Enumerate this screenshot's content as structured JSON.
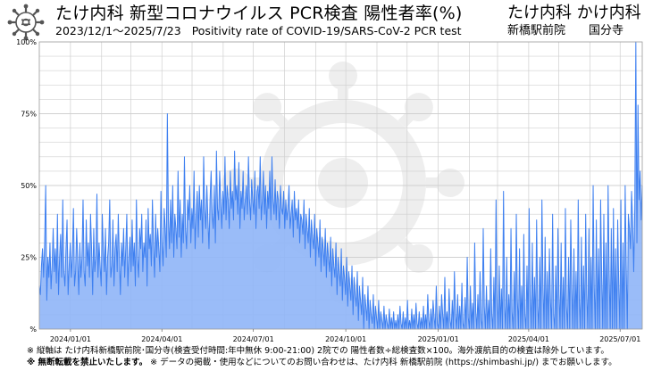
{
  "header": {
    "title": "たけ内科 新型コロナウイルス PCR検査 陽性者率(%)",
    "date_range": "2023/12/1～2025/7/23",
    "subtitle_en": "Positivity rate of COVID-19/SARS-CoV-2 PCR test",
    "clinic_brand": "たけ内科 かけ内科",
    "clinic_branch_1": "新橋駅前院",
    "clinic_branch_2": "国分寺"
  },
  "notes": {
    "line1": "※ 縦軸は たけ内科新橋駅前院･国分寺(検査受付時間:年中無休 9:00-21:00) 2院での 陽性者数÷総検査数×100。海外渡航目的の検査は除外しています。",
    "line2_bold": "※ 無断転載を禁止いたします。",
    "line2_rest": " ※ データの掲載・使用などについてのお問い合わせは、たけ内科 新橋駅前院 (https://shimbashi.jp/) までお願いします。"
  },
  "colors": {
    "line": "#3d7ff0",
    "fill": "#8fb5f7",
    "grid": "#d0d0d0",
    "watermark": "#eeeeee"
  },
  "chart_data": {
    "type": "area",
    "x_start": "2023-12-01",
    "x_end": "2025-07-23",
    "ylim": [
      0,
      100
    ],
    "y_ticks": [
      0,
      25,
      50,
      75,
      100
    ],
    "y_tick_labels": [
      "%",
      "25%",
      "50%",
      "75%",
      "100%"
    ],
    "x_ticks": [
      "2024-01-01",
      "2024-04-01",
      "2024-07-01",
      "2024-10-01",
      "2025-01-01",
      "2025-04-01",
      "2025-07-01"
    ],
    "x_tick_labels": [
      "2024/01/01",
      "2024/04/01",
      "2024/07/01",
      "2024/10/01",
      "2025/01/01",
      "2025/04/01",
      "2025/07/01"
    ],
    "grid": true,
    "series": [
      {
        "values": [
          15,
          12,
          22,
          28,
          18,
          30,
          50,
          10,
          25,
          18,
          30,
          14,
          22,
          35,
          20,
          28,
          16,
          40,
          12,
          25,
          33,
          18,
          45,
          20,
          15,
          28,
          38,
          12,
          22,
          30,
          18,
          26,
          42,
          15,
          20,
          35,
          25,
          12,
          30,
          18,
          25,
          45,
          20,
          15,
          38,
          22,
          30,
          18,
          40,
          28,
          12,
          35,
          20,
          25,
          47,
          18,
          30,
          22,
          15,
          40,
          28,
          20,
          35,
          12,
          25,
          30,
          45,
          18,
          22,
          38,
          15,
          28,
          33,
          20,
          40,
          25,
          12,
          30,
          22,
          35,
          18,
          28,
          40,
          15,
          25,
          32,
          20,
          38,
          22,
          30,
          15,
          45,
          25,
          18,
          35,
          28,
          40,
          20,
          30,
          25,
          38,
          15,
          42,
          28,
          33,
          22,
          45,
          30,
          18,
          40,
          25,
          35,
          28,
          20,
          48,
          30,
          22,
          42,
          35,
          25,
          75,
          38,
          28,
          45,
          30,
          50,
          25,
          40,
          35,
          28,
          55,
          32,
          45,
          25,
          40,
          30,
          60,
          35,
          28,
          45,
          38,
          50,
          30,
          42,
          35,
          55,
          28,
          40,
          48,
          32,
          50,
          38,
          45,
          30,
          60,
          42,
          35,
          50,
          38,
          28,
          45,
          55,
          40,
          35,
          50,
          30,
          62,
          42,
          38,
          55,
          45,
          35,
          48,
          40,
          60,
          38,
          50,
          45,
          35,
          55,
          42,
          48,
          38,
          62,
          45,
          50,
          40,
          58,
          35,
          48,
          42,
          55,
          38,
          45,
          50,
          40,
          60,
          45,
          38,
          52,
          45,
          40,
          55,
          35,
          48,
          50,
          42,
          60,
          38,
          45,
          55,
          40,
          50,
          35,
          48,
          42,
          55,
          38,
          60,
          45,
          40,
          52,
          38,
          48,
          45,
          35,
          50,
          42,
          40,
          48,
          35,
          45,
          38,
          42,
          50,
          35,
          40,
          45,
          32,
          48,
          38,
          42,
          35,
          45,
          30,
          40,
          38,
          33,
          45,
          28,
          40,
          35,
          30,
          42,
          25,
          38,
          32,
          28,
          40,
          22,
          35,
          30,
          25,
          38,
          20,
          32,
          28,
          22,
          35,
          18,
          30,
          25,
          20,
          32,
          15,
          28,
          22,
          18,
          30,
          12,
          25,
          20,
          15,
          28,
          10,
          22,
          18,
          12,
          25,
          8,
          20,
          15,
          10,
          22,
          5,
          18,
          12,
          8,
          20,
          3,
          15,
          10,
          5,
          18,
          0,
          12,
          8,
          3,
          15,
          0,
          10,
          5,
          2,
          12,
          0,
          8,
          4,
          0,
          10,
          0,
          6,
          3,
          0,
          8,
          0,
          5,
          2,
          0,
          7,
          0,
          4,
          0,
          6,
          0,
          3,
          0,
          5,
          0,
          8,
          2,
          0,
          6,
          0,
          4,
          0,
          10,
          0,
          3,
          0,
          7,
          0,
          5,
          0,
          9,
          2,
          0,
          6,
          0,
          4,
          0,
          8,
          0,
          5,
          0,
          12,
          3,
          0,
          7,
          0,
          10,
          4,
          0,
          15,
          2,
          0,
          8,
          0,
          12,
          5,
          0,
          18,
          0,
          6,
          0,
          14,
          3,
          0,
          10,
          0,
          20,
          5,
          0,
          12,
          0,
          8,
          0,
          16,
          2,
          0,
          11,
          0,
          25,
          4,
          0,
          15,
          0,
          9,
          0,
          30,
          6,
          0,
          12,
          0,
          20,
          3,
          0,
          35,
          8,
          0,
          15,
          0,
          10,
          0,
          28,
          5,
          0,
          18,
          0,
          45,
          10,
          0,
          22,
          0,
          14,
          0,
          48,
          8,
          0,
          25,
          0,
          12,
          0,
          35,
          6,
          0,
          20,
          0,
          40,
          10,
          0,
          28,
          0,
          15,
          0,
          33,
          5,
          0,
          22,
          0,
          42,
          12,
          0,
          30,
          0,
          18,
          0,
          38,
          8,
          0,
          25,
          0,
          45,
          15,
          0,
          32,
          0,
          20,
          0,
          28,
          10,
          0,
          40,
          5,
          0,
          22,
          0,
          35,
          12,
          0,
          30,
          0,
          18,
          0,
          42,
          8,
          0,
          25,
          0,
          38,
          15,
          0,
          28,
          0,
          20,
          0,
          45,
          10,
          0,
          32,
          0,
          22,
          0,
          40,
          12,
          0,
          35,
          0,
          25,
          0,
          50,
          15,
          0,
          38,
          0,
          28,
          0,
          45,
          18,
          0,
          40,
          0,
          30,
          0,
          50,
          20,
          0,
          35,
          0,
          42,
          0,
          28,
          0,
          38,
          15,
          0,
          45,
          0,
          30,
          0,
          50,
          22,
          0,
          40,
          35,
          28,
          48,
          38,
          20,
          42,
          100,
          30,
          78,
          45,
          55,
          38,
          50
        ]
      }
    ]
  }
}
